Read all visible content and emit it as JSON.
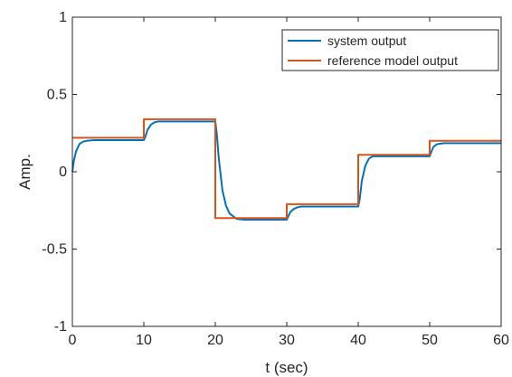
{
  "chart_data": {
    "type": "line",
    "xlabel": "t (sec)",
    "ylabel": "Amp.",
    "xlim": [
      0,
      60
    ],
    "ylim": [
      -1,
      1
    ],
    "xticks": [
      0,
      10,
      20,
      30,
      40,
      50,
      60
    ],
    "yticks": [
      -1,
      -0.5,
      0,
      0.5,
      1
    ],
    "xtick_labels": [
      "0",
      "10",
      "20",
      "30",
      "40",
      "50",
      "60"
    ],
    "ytick_labels": [
      "-1",
      "-0.5",
      "0",
      "0.5",
      "1"
    ],
    "grid": false,
    "legend_position": "top-right",
    "series": [
      {
        "name": "system output",
        "color": "#0072BD",
        "x": [
          0,
          0.2,
          0.5,
          1,
          1.5,
          2,
          3,
          4,
          10,
          10.2,
          10.5,
          11,
          11.5,
          12,
          13,
          14,
          20,
          20.2,
          20.5,
          21,
          21.5,
          22,
          23,
          24,
          30,
          30.2,
          30.5,
          31,
          31.5,
          32,
          33,
          34,
          40,
          40.2,
          40.5,
          41,
          41.5,
          42,
          43,
          44,
          50,
          50.2,
          50.5,
          51,
          51.5,
          52,
          53,
          54,
          60
        ],
        "y": [
          0,
          0.07,
          0.13,
          0.18,
          0.195,
          0.2,
          0.205,
          0.205,
          0.205,
          0.225,
          0.27,
          0.305,
          0.32,
          0.325,
          0.325,
          0.325,
          0.325,
          0.25,
          0.08,
          -0.12,
          -0.22,
          -0.27,
          -0.305,
          -0.31,
          -0.31,
          -0.29,
          -0.26,
          -0.24,
          -0.23,
          -0.225,
          -0.225,
          -0.225,
          -0.225,
          -0.18,
          -0.06,
          0.04,
          0.085,
          0.1,
          0.1,
          0.1,
          0.1,
          0.125,
          0.16,
          0.178,
          0.182,
          0.185,
          0.185,
          0.185,
          0.185
        ]
      },
      {
        "name": "reference model output",
        "color": "#D95319",
        "x": [
          0,
          10,
          10,
          20,
          20,
          30,
          30,
          40,
          40,
          50,
          50,
          60
        ],
        "y": [
          0.22,
          0.22,
          0.34,
          0.34,
          -0.3,
          -0.3,
          -0.21,
          -0.21,
          0.11,
          0.11,
          0.2,
          0.2
        ]
      }
    ]
  }
}
